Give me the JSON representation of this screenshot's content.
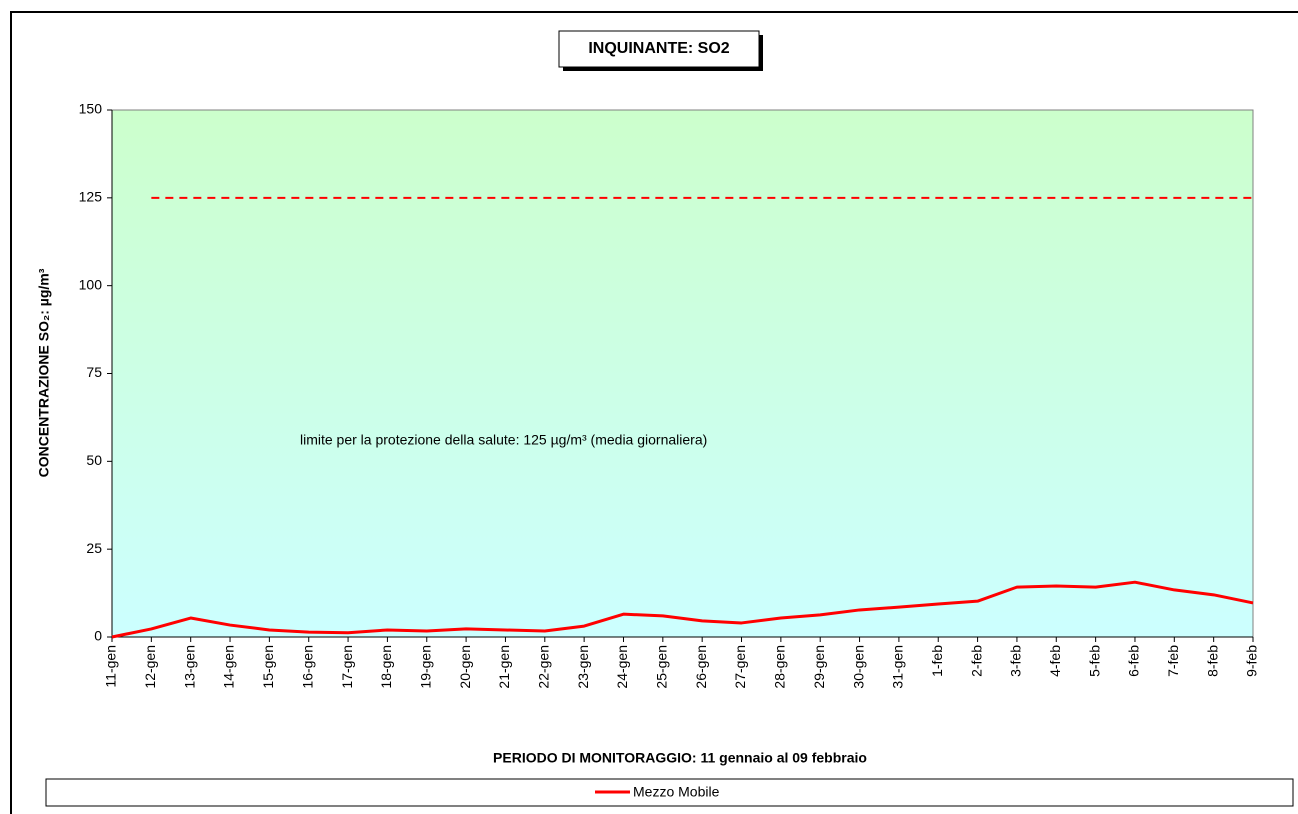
{
  "chart_data": {
    "type": "line",
    "title": "INQUINANTE: SO2",
    "y_label": "CONCENTRAZIONE SO₂:  µg/m³",
    "x_label": "PERIODO DI MONITORAGGIO: 11 gennaio al 09 febbraio",
    "annotation": "limite per la protezione della salute: 125 µg/m³ (media giornaliera)",
    "categories": [
      "11-gen",
      "12-gen",
      "13-gen",
      "14-gen",
      "15-gen",
      "16-gen",
      "17-gen",
      "18-gen",
      "19-gen",
      "20-gen",
      "21-gen",
      "22-gen",
      "23-gen",
      "24-gen",
      "25-gen",
      "26-gen",
      "27-gen",
      "28-gen",
      "29-gen",
      "30-gen",
      "31-gen",
      "1-feb",
      "2-feb",
      "3-feb",
      "4-feb",
      "5-feb",
      "6-feb",
      "7-feb",
      "8-feb",
      "9-feb"
    ],
    "series": [
      {
        "name": "Mezzo Mobile",
        "color": "#ff0000",
        "values": [
          0,
          2.3,
          5.4,
          3.4,
          2.0,
          1.4,
          1.2,
          2.0,
          1.7,
          2.3,
          2.0,
          1.7,
          3.1,
          6.5,
          6.0,
          4.6,
          4.0,
          5.4,
          6.3,
          7.7,
          8.5,
          9.4,
          10.2,
          14.2,
          14.5,
          14.2,
          15.6,
          13.4,
          12.0,
          9.7
        ]
      },
      {
        "color": "#ff0000",
        "dashed": true,
        "values": [
          null,
          125,
          125,
          125,
          125,
          125,
          125,
          125,
          125,
          125,
          125,
          125,
          125,
          125,
          125,
          125,
          125,
          125,
          125,
          125,
          125,
          125,
          125,
          125,
          125,
          125,
          125,
          125,
          125,
          125
        ]
      }
    ],
    "ylim": [
      0,
      150
    ],
    "yticks": [
      0,
      25,
      50,
      75,
      100,
      125,
      150
    ]
  }
}
